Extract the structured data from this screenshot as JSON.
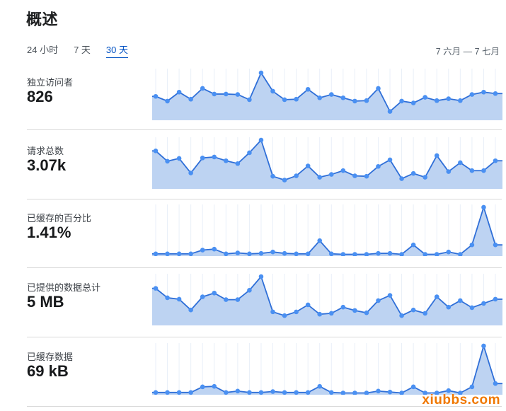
{
  "header": {
    "title": "概述",
    "date_range": "7 六月 — 7 七月"
  },
  "tabs": [
    {
      "label": "24 小时",
      "active": false
    },
    {
      "label": "7 天",
      "active": false
    },
    {
      "label": "30 天",
      "active": true
    }
  ],
  "colors": {
    "accent_blue": "#0051c3",
    "line": "#2f6fd8",
    "dot": "#4a90f2",
    "fill": "#bdd3f2",
    "gridline": "#e9eff8",
    "separator": "#d9d9d9",
    "watermark_orange": "#f07800"
  },
  "metrics": [
    {
      "id": "unique-visitors",
      "label": "独立访问者",
      "value": "826",
      "points": [
        47,
        37,
        56,
        41,
        64,
        52,
        52,
        51,
        40,
        97,
        58,
        40,
        41,
        62,
        44,
        51,
        44,
        37,
        38,
        64,
        15,
        37,
        33,
        45,
        38,
        42,
        38,
        51,
        56,
        53
      ]
    },
    {
      "id": "total-requests",
      "label": "请求总数",
      "value": "3.07k",
      "points": [
        77,
        55,
        61,
        30,
        62,
        64,
        56,
        50,
        73,
        100,
        23,
        15,
        24,
        45,
        21,
        27,
        35,
        24,
        23,
        44,
        58,
        18,
        29,
        21,
        67,
        33,
        52,
        35,
        35,
        56
      ]
    },
    {
      "id": "percent-cached",
      "label": "已缓存的百分比",
      "value": "1.41%",
      "points": [
        1,
        1,
        1,
        1,
        9,
        11,
        1,
        3,
        1,
        2,
        5,
        2,
        1,
        1,
        29,
        1,
        0,
        0,
        0,
        2,
        2,
        0,
        20,
        0,
        0,
        5,
        0,
        20,
        100,
        20
      ]
    },
    {
      "id": "total-data-served",
      "label": "已提供的数据总计",
      "value": "5 MB",
      "points": [
        75,
        55,
        52,
        29,
        57,
        65,
        51,
        51,
        71,
        100,
        25,
        17,
        25,
        40,
        20,
        22,
        35,
        28,
        23,
        49,
        60,
        17,
        29,
        22,
        57,
        35,
        49,
        34,
        43,
        52
      ]
    },
    {
      "id": "cached-data",
      "label": "已缓存数据",
      "value": "69 kB",
      "points": [
        1,
        1,
        1,
        1,
        13,
        14,
        1,
        4,
        1,
        1,
        3,
        1,
        1,
        1,
        14,
        1,
        0,
        0,
        0,
        4,
        2,
        0,
        13,
        0,
        0,
        5,
        0,
        13,
        100,
        20
      ]
    }
  ],
  "chart_data": {
    "type": "area",
    "note": "five daily sparklines over 30 days, relative heights 0-100 (no y-axis shown)",
    "series_refs": "see metrics[].points",
    "totals": {
      "unique_visitors": "826",
      "total_requests": "3.07k",
      "percent_cached": "1.41%",
      "total_data_served": "5 MB",
      "cached_data": "69 kB"
    }
  },
  "watermark": "xiubbs.com"
}
